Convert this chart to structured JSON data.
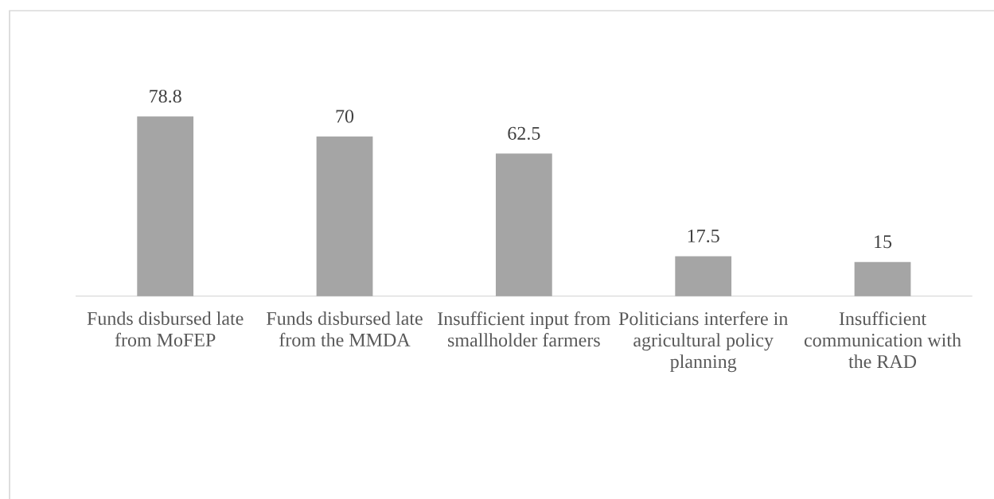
{
  "chart_data": {
    "type": "bar",
    "categories": [
      "Funds disbursed late from MoFEP",
      "Funds disbursed late from the MMDA",
      "Insufficient input from smallholder farmers",
      "Politicians interfere in agricultural policy planning",
      "Insufficient communication with the RAD"
    ],
    "values": [
      78.8,
      70,
      62.5,
      17.5,
      15
    ],
    "color": "#a5a5a5",
    "data_labels": true
  }
}
